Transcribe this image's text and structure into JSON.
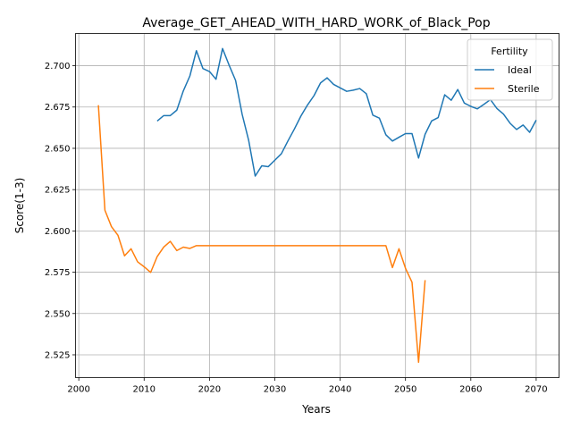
{
  "chart_data": {
    "type": "line",
    "title": "Average_GET_AHEAD_WITH_HARD_WORK_of_Black_Pop",
    "xlabel": "Years",
    "ylabel": "Score(1-3)",
    "xlim": [
      1999.5,
      2073.5
    ],
    "ylim": [
      2.5112,
      2.7195
    ],
    "xticks": [
      2000,
      2010,
      2020,
      2030,
      2040,
      2050,
      2060,
      2070
    ],
    "xtick_labels": [
      "2000",
      "2010",
      "2020",
      "2030",
      "2040",
      "2050",
      "2060",
      "2070"
    ],
    "yticks": [
      2.525,
      2.55,
      2.575,
      2.6,
      2.625,
      2.65,
      2.675,
      2.7
    ],
    "ytick_labels": [
      "2.525",
      "2.550",
      "2.575",
      "2.600",
      "2.625",
      "2.650",
      "2.675",
      "2.700"
    ],
    "grid": true,
    "legend": {
      "title": "Fertility",
      "position": "top-right"
    },
    "series": [
      {
        "name": "Ideal",
        "color": "#1f77b4",
        "x": [
          2012,
          2013,
          2014,
          2015,
          2016,
          2017,
          2018,
          2019,
          2020,
          2021,
          2022,
          2023,
          2024,
          2025,
          2026,
          2027,
          2028,
          2029,
          2030,
          2031,
          2032,
          2033,
          2034,
          2035,
          2036,
          2037,
          2038,
          2039,
          2040,
          2041,
          2042,
          2043,
          2044,
          2045,
          2046,
          2047,
          2048,
          2049,
          2050,
          2051,
          2052,
          2053,
          2054,
          2055,
          2056,
          2057,
          2058,
          2059,
          2060,
          2061,
          2062,
          2063,
          2064,
          2065,
          2066,
          2067,
          2068,
          2069,
          2070
        ],
        "y": [
          2.6665,
          2.6698,
          2.6698,
          2.6731,
          2.6848,
          2.6938,
          2.7091,
          2.6983,
          2.6965,
          2.6918,
          2.7104,
          2.7004,
          2.6911,
          2.6706,
          2.6548,
          2.6332,
          2.6394,
          2.6389,
          2.6428,
          2.6467,
          2.6544,
          2.6617,
          2.6696,
          2.6762,
          2.6819,
          2.6896,
          2.6927,
          2.6887,
          2.6866,
          2.6845,
          2.6852,
          2.6862,
          2.6831,
          2.6701,
          2.6683,
          2.6582,
          2.6544,
          2.6567,
          2.6589,
          2.6589,
          2.6441,
          2.6585,
          2.6666,
          2.6686,
          2.6824,
          2.6791,
          2.6856,
          2.6774,
          2.6754,
          2.6739,
          2.6766,
          2.6795,
          2.6741,
          2.6707,
          2.6652,
          2.6614,
          2.6641,
          2.6597,
          2.6671
        ]
      },
      {
        "name": "Sterile",
        "color": "#ff7f0e",
        "x": [
          2003,
          2004,
          2005,
          2006,
          2007,
          2008,
          2009,
          2010,
          2011,
          2012,
          2013,
          2014,
          2015,
          2016,
          2017,
          2018,
          2019,
          2020,
          2021,
          2022,
          2023,
          2024,
          2025,
          2026,
          2027,
          2028,
          2029,
          2030,
          2031,
          2032,
          2033,
          2034,
          2035,
          2036,
          2037,
          2038,
          2039,
          2040,
          2041,
          2042,
          2043,
          2044,
          2045,
          2046,
          2047,
          2048,
          2049,
          2050,
          2051,
          2052,
          2053
        ],
        "y": [
          2.6761,
          2.6125,
          2.6026,
          2.5973,
          2.5849,
          2.5892,
          2.5813,
          2.5783,
          2.5749,
          2.5845,
          2.5902,
          2.5937,
          2.5881,
          2.5902,
          2.5894,
          2.5911,
          2.5911,
          2.5911,
          2.5911,
          2.5911,
          2.5911,
          2.5911,
          2.5911,
          2.5911,
          2.5911,
          2.5911,
          2.5911,
          2.5911,
          2.5911,
          2.5911,
          2.5911,
          2.5911,
          2.5911,
          2.5911,
          2.5911,
          2.5911,
          2.5911,
          2.5911,
          2.5911,
          2.5911,
          2.5911,
          2.5911,
          2.5911,
          2.5911,
          2.5911,
          2.5778,
          2.5892,
          2.5774,
          2.5689,
          2.5205,
          2.5702
        ]
      }
    ]
  }
}
